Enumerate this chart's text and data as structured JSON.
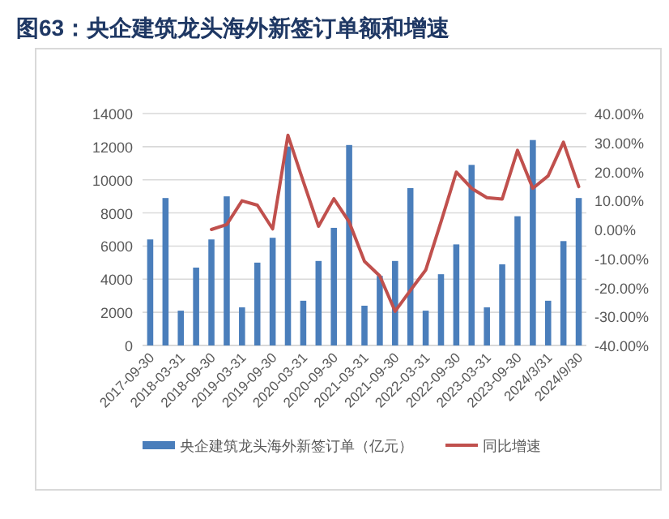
{
  "chart_data": {
    "type": "bar",
    "title": "图63：央企建筑龙头海外新签订单额和增速",
    "categories": [
      "2017-09-30",
      null,
      "2018-03-31",
      null,
      "2018-09-30",
      null,
      "2019-03-31",
      null,
      "2019-09-30",
      null,
      "2020-03-31",
      null,
      "2020-09-30",
      null,
      "2021-03-31",
      null,
      "2021-09-30",
      null,
      "2022-03-31",
      null,
      "2022-09-30",
      null,
      "2023-03-31",
      null,
      "2023-09-30",
      null,
      "2024/3/31",
      null,
      "2024/9/30"
    ],
    "series": [
      {
        "name": "央企建筑龙头海外新签订单（亿元）",
        "color": "#4a7ebb",
        "values": [
          6400,
          8900,
          2100,
          4700,
          6400,
          9000,
          2300,
          5000,
          6500,
          12000,
          2700,
          5100,
          7100,
          12100,
          2400,
          4200,
          5100,
          9500,
          2100,
          4300,
          6100,
          10900,
          2300,
          4900,
          7800,
          12400,
          2700,
          6300,
          8900
        ]
      },
      {
        "name": "同比增速",
        "type": "line",
        "axis": "y2",
        "color": "#c0504d",
        "values": [
          null,
          null,
          null,
          null,
          0,
          1.7,
          9.9,
          8.4,
          0.2,
          32.5,
          16.6,
          1.1,
          10.6,
          2.6,
          -11,
          -16,
          -28.2,
          -21,
          -14,
          2.6,
          19.8,
          14.2,
          11,
          10.5,
          27.3,
          14.2,
          18.5,
          30.1,
          14.8
        ]
      }
    ],
    "ylim": [
      0,
      14000
    ],
    "yticks": [
      0,
      2000,
      4000,
      6000,
      8000,
      10000,
      12000,
      14000
    ],
    "y2lim": [
      -40,
      40
    ],
    "y2ticks": [
      {
        "value": -40,
        "label": "-40.00%"
      },
      {
        "value": -30,
        "label": "-30.00%"
      },
      {
        "value": -20,
        "label": "-20.00%"
      },
      {
        "value": -10,
        "label": "-10.00%"
      },
      {
        "value": 0,
        "label": "0.00%"
      },
      {
        "value": 10,
        "label": "10.00%"
      },
      {
        "value": 20,
        "label": "20.00%"
      },
      {
        "value": 30,
        "label": "30.00%"
      },
      {
        "value": 40,
        "label": "40.00%"
      }
    ],
    "grid": "y",
    "legend": "bottom"
  }
}
